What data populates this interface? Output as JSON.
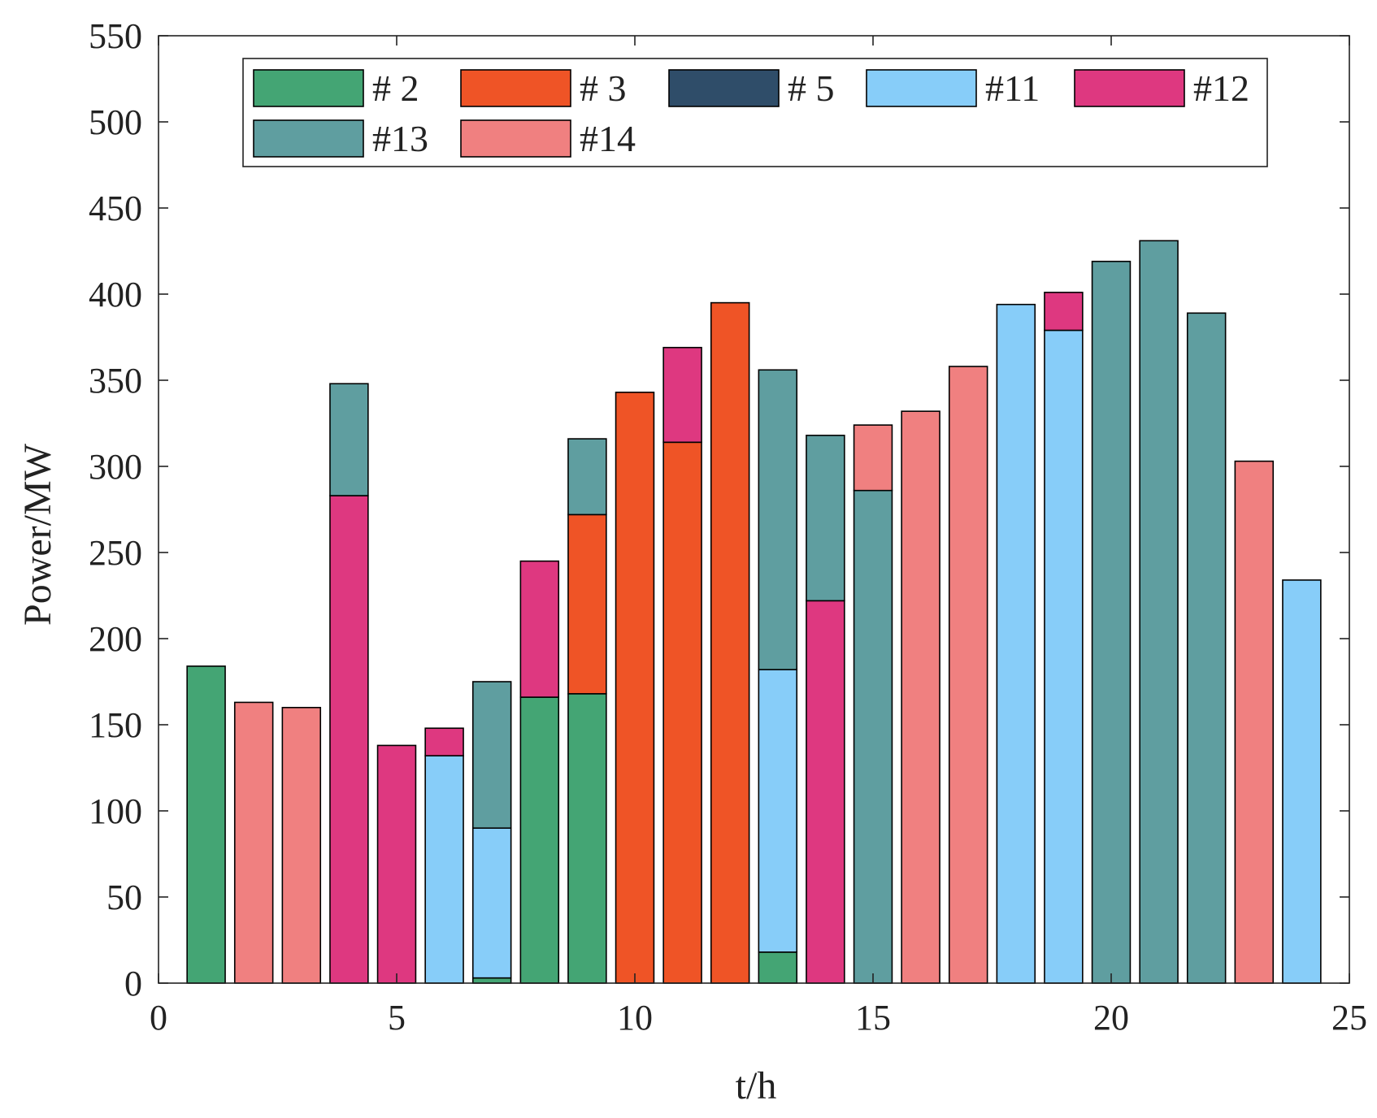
{
  "chart_data": {
    "type": "bar",
    "stacked": true,
    "title": "",
    "xlabel": "t/h",
    "ylabel": "Power/MW",
    "xlim": [
      0,
      25
    ],
    "ylim": [
      0,
      550
    ],
    "xticks": [
      0,
      5,
      10,
      15,
      20,
      25
    ],
    "yticks": [
      0,
      50,
      100,
      150,
      200,
      250,
      300,
      350,
      400,
      450,
      500,
      550
    ],
    "legend_position": "top",
    "series": [
      {
        "name": "# 2",
        "color": "#44a574"
      },
      {
        "name": "# 3",
        "color": "#ef5426"
      },
      {
        "name": "# 5",
        "color": "#2f4d69"
      },
      {
        "name": "#11",
        "color": "#87cdf9"
      },
      {
        "name": "#12",
        "color": "#de3880"
      },
      {
        "name": "#13",
        "color": "#5f9ea0"
      },
      {
        "name": "#14",
        "color": "#f08080"
      }
    ],
    "bars": [
      {
        "x": 1,
        "segments": [
          {
            "series": "# 2",
            "value": 184
          }
        ]
      },
      {
        "x": 2,
        "segments": [
          {
            "series": "#14",
            "value": 163
          }
        ]
      },
      {
        "x": 3,
        "segments": [
          {
            "series": "#14",
            "value": 160
          }
        ]
      },
      {
        "x": 4,
        "segments": [
          {
            "series": "#12",
            "value": 283
          },
          {
            "series": "#13",
            "value": 65
          }
        ]
      },
      {
        "x": 5,
        "segments": [
          {
            "series": "#12",
            "value": 138
          }
        ]
      },
      {
        "x": 6,
        "segments": [
          {
            "series": "#11",
            "value": 132
          },
          {
            "series": "#12",
            "value": 16
          }
        ]
      },
      {
        "x": 7,
        "segments": [
          {
            "series": "# 2",
            "value": 3
          },
          {
            "series": "#11",
            "value": 87
          },
          {
            "series": "#13",
            "value": 85
          }
        ]
      },
      {
        "x": 8,
        "segments": [
          {
            "series": "# 2",
            "value": 166
          },
          {
            "series": "#12",
            "value": 79
          }
        ]
      },
      {
        "x": 9,
        "segments": [
          {
            "series": "# 2",
            "value": 168
          },
          {
            "series": "# 3",
            "value": 104
          },
          {
            "series": "#13",
            "value": 44
          }
        ]
      },
      {
        "x": 10,
        "segments": [
          {
            "series": "# 3",
            "value": 343
          }
        ]
      },
      {
        "x": 11,
        "segments": [
          {
            "series": "# 3",
            "value": 314
          },
          {
            "series": "#12",
            "value": 55
          }
        ]
      },
      {
        "x": 12,
        "segments": [
          {
            "series": "# 3",
            "value": 395
          }
        ]
      },
      {
        "x": 13,
        "segments": [
          {
            "series": "# 2",
            "value": 18
          },
          {
            "series": "#11",
            "value": 164
          },
          {
            "series": "#13",
            "value": 174
          }
        ]
      },
      {
        "x": 14,
        "segments": [
          {
            "series": "#12",
            "value": 222
          },
          {
            "series": "#13",
            "value": 96
          }
        ]
      },
      {
        "x": 15,
        "segments": [
          {
            "series": "#13",
            "value": 286
          },
          {
            "series": "#14",
            "value": 38
          }
        ]
      },
      {
        "x": 16,
        "segments": [
          {
            "series": "#14",
            "value": 332
          }
        ]
      },
      {
        "x": 17,
        "segments": [
          {
            "series": "#14",
            "value": 358
          }
        ]
      },
      {
        "x": 18,
        "segments": [
          {
            "series": "#11",
            "value": 394
          }
        ]
      },
      {
        "x": 19,
        "segments": [
          {
            "series": "#11",
            "value": 379
          },
          {
            "series": "#12",
            "value": 22
          }
        ]
      },
      {
        "x": 20,
        "segments": [
          {
            "series": "#13",
            "value": 419
          }
        ]
      },
      {
        "x": 21,
        "segments": [
          {
            "series": "#13",
            "value": 431
          }
        ]
      },
      {
        "x": 22,
        "segments": [
          {
            "series": "#13",
            "value": 389
          }
        ]
      },
      {
        "x": 23,
        "segments": [
          {
            "series": "#14",
            "value": 303
          }
        ]
      },
      {
        "x": 24,
        "segments": [
          {
            "series": "#11",
            "value": 234
          }
        ]
      }
    ]
  }
}
